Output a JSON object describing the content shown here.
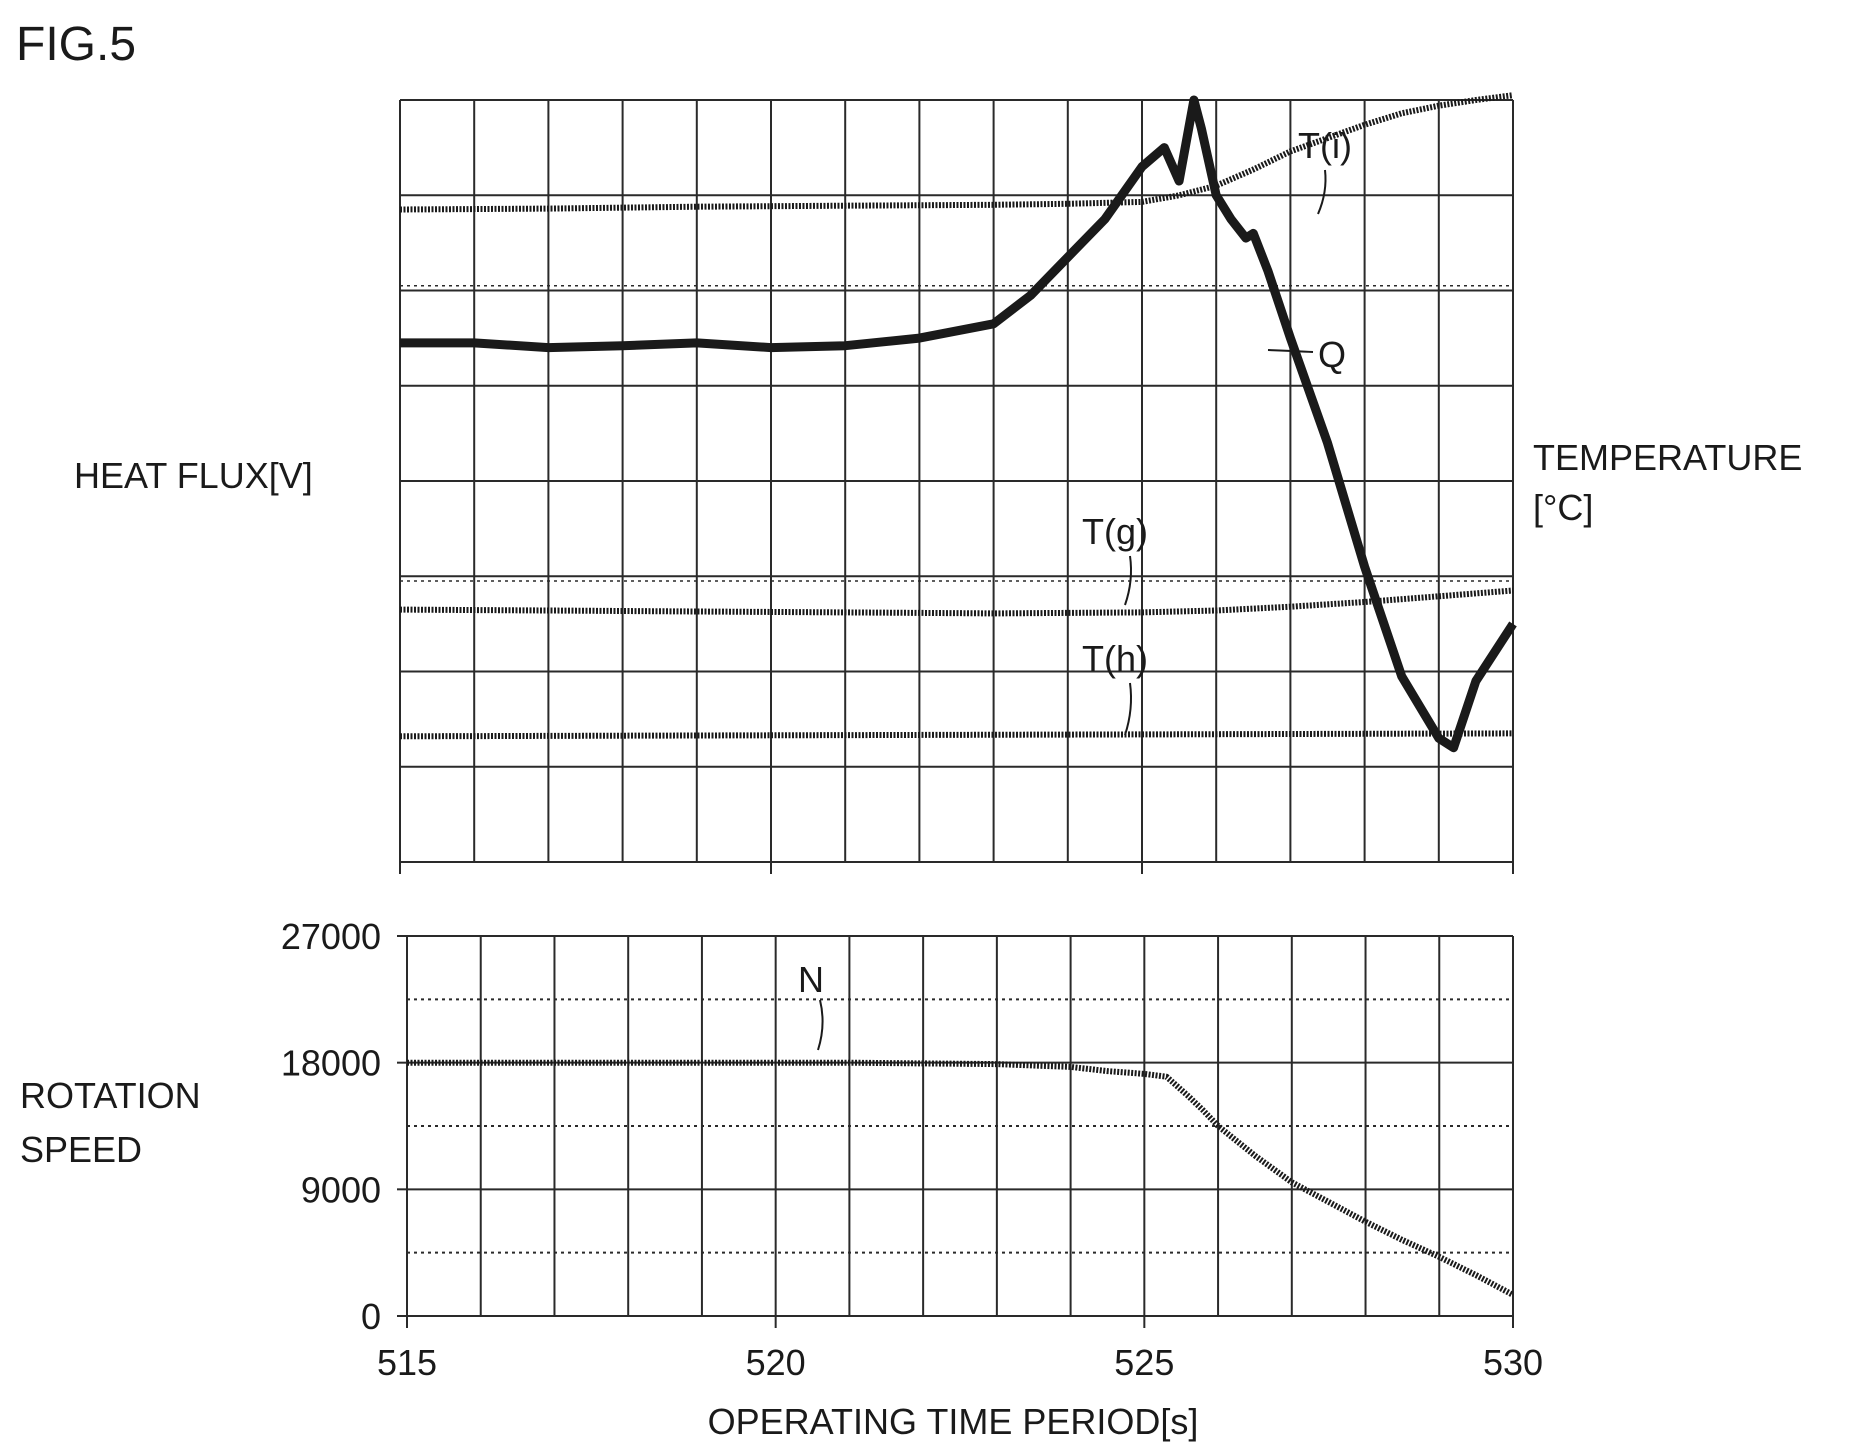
{
  "figure_label": "FIG.5",
  "colors": {
    "ink": "#1a1a1a",
    "grid": "#2a2a2a",
    "background": "#ffffff"
  },
  "chart_data": [
    {
      "type": "line",
      "title": "",
      "xlabel": "",
      "ylabel_left": "HEAT FLUX[V]",
      "ylabel_right": "TEMPERATURE [°C]",
      "ylabel_right_lines": [
        "TEMPERATURE",
        "[°C]"
      ],
      "xlim": [
        515,
        530
      ],
      "ylim": [
        0,
        8
      ],
      "y_tick_labels": [],
      "grid": true,
      "legend": "none",
      "series": [
        {
          "name": "T(i)",
          "label": "T(i)",
          "x": [
            515,
            517,
            519,
            521,
            523,
            524,
            525,
            525.5,
            526,
            526.5,
            527,
            527.5,
            528,
            528.5,
            529,
            529.5,
            530
          ],
          "values": [
            6.85,
            6.86,
            6.88,
            6.89,
            6.9,
            6.91,
            6.93,
            7.0,
            7.1,
            7.27,
            7.46,
            7.6,
            7.74,
            7.86,
            7.94,
            8.0,
            8.05
          ]
        },
        {
          "name": "Q",
          "label": "Q",
          "x": [
            515,
            516,
            517,
            518,
            519,
            520,
            521,
            522,
            523,
            523.5,
            524,
            524.5,
            525,
            525.3,
            525.5,
            525.7,
            525.8,
            526,
            526.2,
            526.4,
            526.5,
            526.7,
            527,
            527.5,
            528,
            528.5,
            529,
            529.2,
            529.5,
            530
          ],
          "values": [
            5.45,
            5.45,
            5.4,
            5.42,
            5.45,
            5.4,
            5.42,
            5.5,
            5.65,
            5.95,
            6.35,
            6.75,
            7.3,
            7.5,
            7.15,
            8.0,
            7.7,
            7.0,
            6.75,
            6.55,
            6.6,
            6.2,
            5.5,
            4.4,
            3.1,
            1.95,
            1.3,
            1.2,
            1.9,
            2.5
          ]
        },
        {
          "name": "T(g)",
          "label": "T(g)",
          "x": [
            515,
            517,
            519,
            521,
            523,
            525,
            526,
            527,
            528,
            529,
            530
          ],
          "values": [
            2.65,
            2.64,
            2.63,
            2.62,
            2.61,
            2.62,
            2.64,
            2.68,
            2.73,
            2.79,
            2.85
          ]
        },
        {
          "name": "T(h)",
          "label": "T(h)",
          "x": [
            515,
            520,
            525,
            530
          ],
          "values": [
            1.32,
            1.33,
            1.34,
            1.35
          ]
        }
      ]
    },
    {
      "type": "line",
      "title": "",
      "xlabel": "OPERATING TIME PERIOD[s]",
      "ylabel": "ROTATION SPEED",
      "ylabel_lines": [
        "ROTATION",
        "SPEED"
      ],
      "xlim": [
        515,
        530
      ],
      "ylim": [
        0,
        27000
      ],
      "x_ticks": [
        "515",
        "520",
        "525",
        "530"
      ],
      "x_tick_values": [
        515,
        520,
        525,
        530
      ],
      "y_ticks": [
        "0",
        "9000",
        "18000",
        "27000"
      ],
      "y_tick_values": [
        0,
        9000,
        18000,
        27000
      ],
      "grid": true,
      "legend": "none",
      "series": [
        {
          "name": "N",
          "label": "N",
          "x": [
            515,
            518,
            521,
            523,
            524,
            524.5,
            525,
            525.3,
            525.6,
            525.8,
            526,
            526.5,
            527,
            527.5,
            528,
            528.5,
            529,
            529.5,
            530
          ],
          "values": [
            18000,
            18000,
            18000,
            17900,
            17700,
            17400,
            17200,
            17000,
            15600,
            14600,
            13500,
            11400,
            9500,
            8100,
            6700,
            5400,
            4200,
            2900,
            1500
          ]
        }
      ]
    }
  ]
}
